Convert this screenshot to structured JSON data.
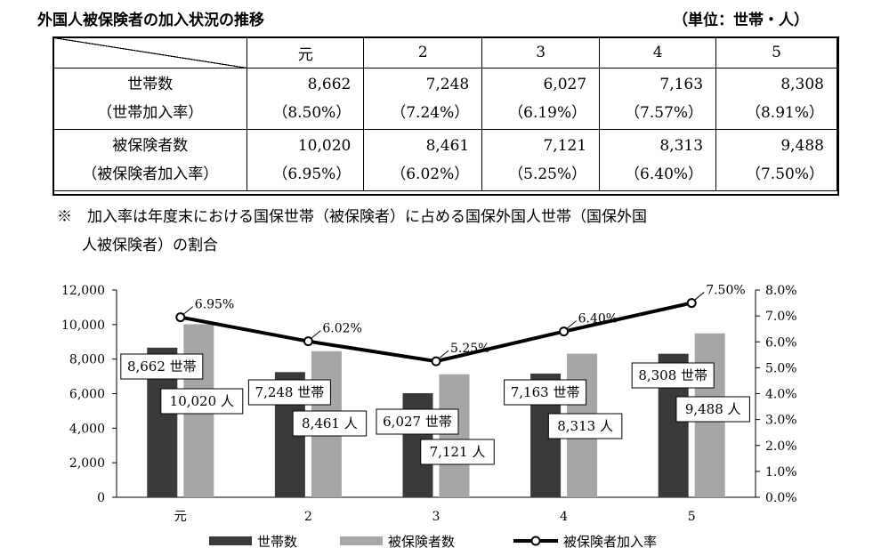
{
  "page": {
    "title": "外国人被保険者の加入状況の推移",
    "unit": "（単位：世帯・人）",
    "note_line1": "※　加入率は年度末における国保世帯（被保険者）に占める国保外国人世帯（国保外国",
    "note_line2": "人被保険者）の割合"
  },
  "table": {
    "columns": [
      "元",
      "2",
      "3",
      "4",
      "5"
    ],
    "rows": [
      {
        "label": "世帯数",
        "sublabel": "（世帯加入率）",
        "values": [
          "8,662",
          "7,248",
          "6,027",
          "7,163",
          "8,308"
        ],
        "rates": [
          "（8.50%）",
          "（7.24%）",
          "（6.19%）",
          "（7.57%）",
          "（8.91%）"
        ]
      },
      {
        "label": "被保険者数",
        "sublabel": "（被保険者加入率）",
        "values": [
          "10,020",
          "8,461",
          "7,121",
          "8,313",
          "9,488"
        ],
        "rates": [
          "（6.95%）",
          "（6.02%）",
          "（5.25%）",
          "（6.40%）",
          "（7.50%）"
        ]
      }
    ]
  },
  "chart_data": {
    "type": "bar",
    "categories": [
      "元",
      "2",
      "3",
      "4",
      "5"
    ],
    "series": [
      {
        "name": "世帯数",
        "kind": "bar",
        "axis": "left",
        "color": "#3a3a3a",
        "values": [
          8662,
          7248,
          6027,
          7163,
          8308
        ],
        "labels": [
          "8,662 世帯",
          "7,248 世帯",
          "6,027 世帯",
          "7,163 世帯",
          "8,308 世帯"
        ]
      },
      {
        "name": "被保険者数",
        "kind": "bar",
        "axis": "left",
        "color": "#a6a6a6",
        "values": [
          10020,
          8461,
          7121,
          8313,
          9488
        ],
        "labels": [
          "10,020 人",
          "8,461 人",
          "7,121 人",
          "8,313 人",
          "9,488 人"
        ]
      },
      {
        "name": "被保険者加入率",
        "kind": "line",
        "axis": "right",
        "color": "#000000",
        "values": [
          6.95,
          6.02,
          5.25,
          6.4,
          7.5
        ],
        "labels": [
          "6.95%",
          "6.02%",
          "5.25%",
          "6.40%",
          "7.50%"
        ]
      }
    ],
    "y_left": {
      "min": 0,
      "max": 12000,
      "ticks": [
        "0",
        "2,000",
        "4,000",
        "6,000",
        "8,000",
        "10,000",
        "12,000"
      ]
    },
    "y_right": {
      "min": 0,
      "max": 8,
      "ticks": [
        "0.0%",
        "1.0%",
        "2.0%",
        "3.0%",
        "4.0%",
        "5.0%",
        "6.0%",
        "7.0%",
        "8.0%"
      ]
    },
    "legend_position": "bottom",
    "grid": false
  }
}
